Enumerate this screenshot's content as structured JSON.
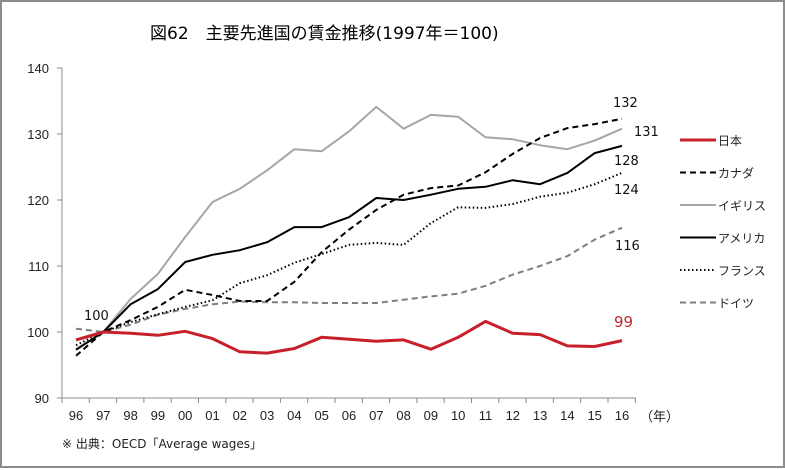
{
  "chart_data": {
    "type": "line",
    "title": "図62　主要先進国の賃金推移(1997年＝100)",
    "xlabel": "（年）",
    "ylabel": "",
    "ylim": [
      90,
      140
    ],
    "yticks": [
      90,
      100,
      110,
      120,
      130,
      140
    ],
    "grid": false,
    "legend_position": "right",
    "categories": [
      "96",
      "97",
      "98",
      "99",
      "00",
      "01",
      "02",
      "03",
      "04",
      "05",
      "06",
      "07",
      "08",
      "09",
      "10",
      "11",
      "12",
      "13",
      "14",
      "15",
      "16"
    ],
    "series": [
      {
        "name": "日本",
        "color": "#c8202a",
        "style": "solid-thick",
        "values": [
          98.8,
          100,
          99.8,
          99.5,
          100.1,
          99.0,
          97.0,
          96.8,
          97.5,
          99.2,
          98.9,
          98.6,
          98.8,
          97.4,
          99.2,
          101.6,
          99.8,
          99.6,
          97.9,
          97.8,
          98.7
        ]
      },
      {
        "name": "カナダ",
        "color": "#000000",
        "style": "dashed",
        "values": [
          96.4,
          100,
          101.8,
          103.8,
          106.4,
          105.6,
          104.7,
          104.7,
          107.6,
          112.1,
          115.5,
          118.5,
          120.8,
          121.8,
          122.2,
          124.2,
          127.0,
          129.4,
          130.9,
          131.5,
          132.3
        ]
      },
      {
        "name": "イギリス",
        "color": "#a6a6a6",
        "style": "solid",
        "values": [
          97.4,
          100,
          105.0,
          108.8,
          114.4,
          119.7,
          121.7,
          124.5,
          127.7,
          127.4,
          130.4,
          134.1,
          130.8,
          132.9,
          132.6,
          129.5,
          129.2,
          128.3,
          127.7,
          129.0,
          130.8
        ]
      },
      {
        "name": "アメリカ",
        "color": "#000000",
        "style": "solid",
        "values": [
          97.3,
          100,
          104.2,
          106.5,
          110.6,
          111.7,
          112.4,
          113.6,
          115.9,
          115.9,
          117.4,
          120.3,
          120.0,
          120.8,
          121.7,
          122.0,
          123.0,
          122.4,
          124.1,
          127.1,
          128.2
        ]
      },
      {
        "name": "フランス",
        "color": "#000000",
        "style": "dotted",
        "values": [
          98.0,
          100,
          101.5,
          102.7,
          103.8,
          104.8,
          107.4,
          108.6,
          110.5,
          111.8,
          113.2,
          113.5,
          113.2,
          116.5,
          118.9,
          118.8,
          119.4,
          120.5,
          121.1,
          122.4,
          124.1
        ]
      },
      {
        "name": "ドイツ",
        "color": "#7f7f7f",
        "style": "dashed",
        "values": [
          100.5,
          100,
          101.1,
          102.6,
          103.5,
          104.2,
          104.6,
          104.5,
          104.5,
          104.4,
          104.4,
          104.4,
          104.9,
          105.4,
          105.8,
          107.0,
          108.7,
          110.0,
          111.5,
          114.0,
          115.8
        ]
      }
    ],
    "annotations": [
      {
        "text": "100",
        "at": "97"
      },
      {
        "text": "132",
        "series": "カナダ"
      },
      {
        "text": "131",
        "series": "イギリス"
      },
      {
        "text": "128",
        "series": "アメリカ"
      },
      {
        "text": "124",
        "series": "フランス"
      },
      {
        "text": "116",
        "series": "ドイツ"
      },
      {
        "text": "99",
        "series": "日本"
      }
    ],
    "source": "※ 出典：OECD「Average wages」"
  }
}
